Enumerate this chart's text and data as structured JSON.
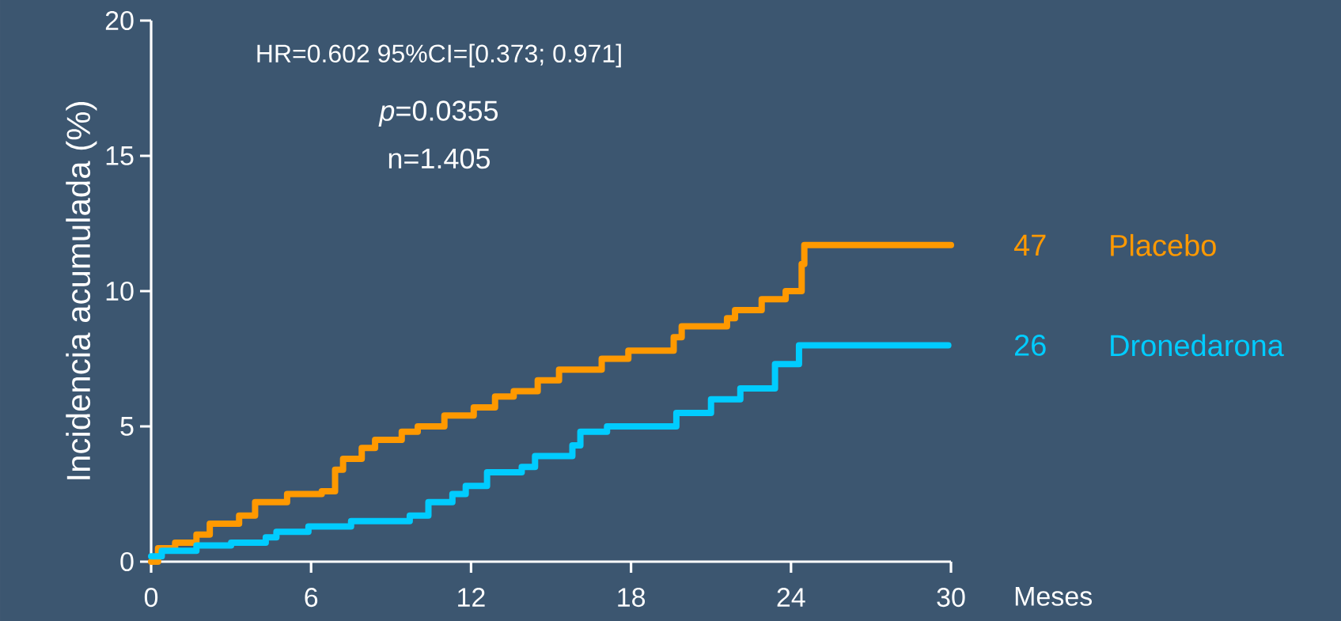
{
  "chart_data": {
    "type": "step",
    "xlabel": "Meses",
    "ylabel": "Incidencia acumulada (%)",
    "xlim": [
      0,
      30
    ],
    "ylim": [
      0,
      20
    ],
    "xticks": [
      0,
      6,
      12,
      18,
      24,
      30
    ],
    "yticks": [
      0,
      5,
      10,
      15,
      20
    ],
    "annotations": [
      "HR=0.602 95%CI=[0.373; 0.971]",
      "*p*=0.0355",
      "n=1.405",
      "47",
      "26"
    ],
    "series": [
      {
        "name": "Placebo",
        "color": "#ff9900",
        "x": [
          0,
          0.26,
          0.9,
          1.7,
          2.2,
          3.3,
          3.9,
          5.1,
          6.4,
          6.9,
          7.2,
          7.9,
          8.4,
          9.4,
          10.0,
          11.0,
          12.1,
          12.9,
          13.6,
          14.5,
          15.3,
          16.9,
          17.9,
          19.6,
          19.9,
          21.6,
          21.9,
          22.9,
          23.8,
          24.4,
          24.5,
          30
        ],
        "values": [
          0,
          0.5,
          0.7,
          1.0,
          1.4,
          1.7,
          2.2,
          2.5,
          2.6,
          3.4,
          3.8,
          4.2,
          4.5,
          4.8,
          5.0,
          5.4,
          5.7,
          6.1,
          6.3,
          6.7,
          7.1,
          7.5,
          7.8,
          8.3,
          8.7,
          9.0,
          9.3,
          9.7,
          10.0,
          11.0,
          11.7,
          11.7
        ]
      },
      {
        "name": "Dronedarona",
        "color": "#00ccff",
        "x": [
          0,
          0.4,
          1.7,
          3.0,
          4.3,
          4.7,
          5.9,
          7.5,
          9.7,
          10.4,
          11.3,
          11.8,
          12.6,
          13.9,
          14.4,
          15.8,
          16.1,
          17.1,
          19.7,
          21.0,
          22.1,
          23.4,
          24.3,
          29.9
        ],
        "values": [
          0.2,
          0.4,
          0.6,
          0.7,
          0.9,
          1.1,
          1.3,
          1.5,
          1.7,
          2.2,
          2.5,
          2.8,
          3.3,
          3.5,
          3.9,
          4.3,
          4.8,
          5.0,
          5.5,
          6.0,
          6.4,
          7.3,
          8.0,
          8.0
        ]
      }
    ]
  }
}
